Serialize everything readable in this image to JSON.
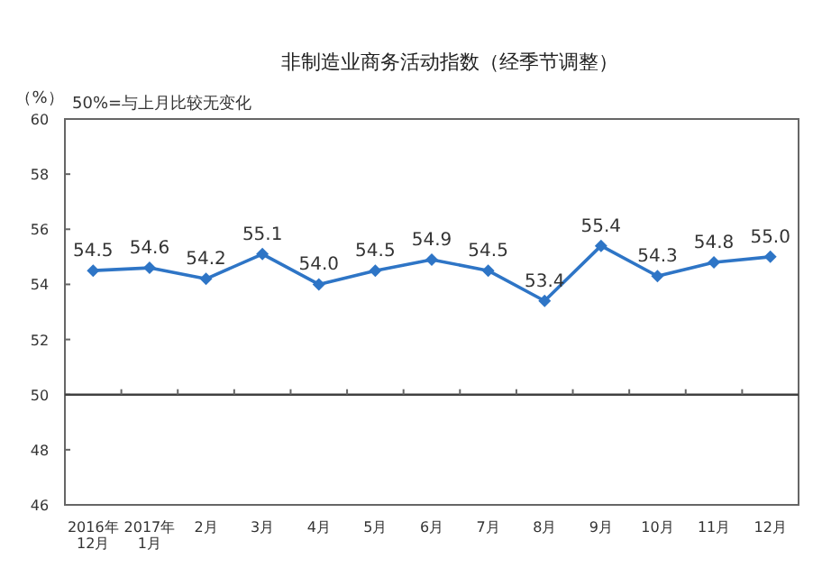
{
  "chart_data": {
    "type": "line",
    "title": "非制造业商务活动指数（经季节调整）",
    "ylabel": "（%）",
    "annotations": [
      "50%=与上月比较无变化"
    ],
    "categories": [
      "2016年\n12月",
      "2017年\n1月",
      "2月",
      "3月",
      "4月",
      "5月",
      "6月",
      "7月",
      "8月",
      "9月",
      "10月",
      "11月",
      "12月"
    ],
    "values": [
      54.5,
      54.6,
      54.2,
      55.1,
      54.0,
      54.5,
      54.9,
      54.5,
      53.4,
      55.4,
      54.3,
      54.8,
      55.0
    ],
    "color": "#2e75c6",
    "ylim": [
      46,
      60
    ],
    "yticks": [
      46,
      48,
      50,
      52,
      54,
      56,
      58,
      60
    ],
    "ref_lines": [
      {
        "axis": "y",
        "value": 50,
        "color": "#404040"
      }
    ],
    "value_labels": [
      "54.5",
      "54.6",
      "54.2",
      "55.1",
      "54.0",
      "54.5",
      "54.9",
      "54.5",
      "53.4",
      "55.4",
      "54.3",
      "54.8",
      "55.0"
    ],
    "marker": "diamond",
    "line_style": "solid",
    "grid": false
  }
}
